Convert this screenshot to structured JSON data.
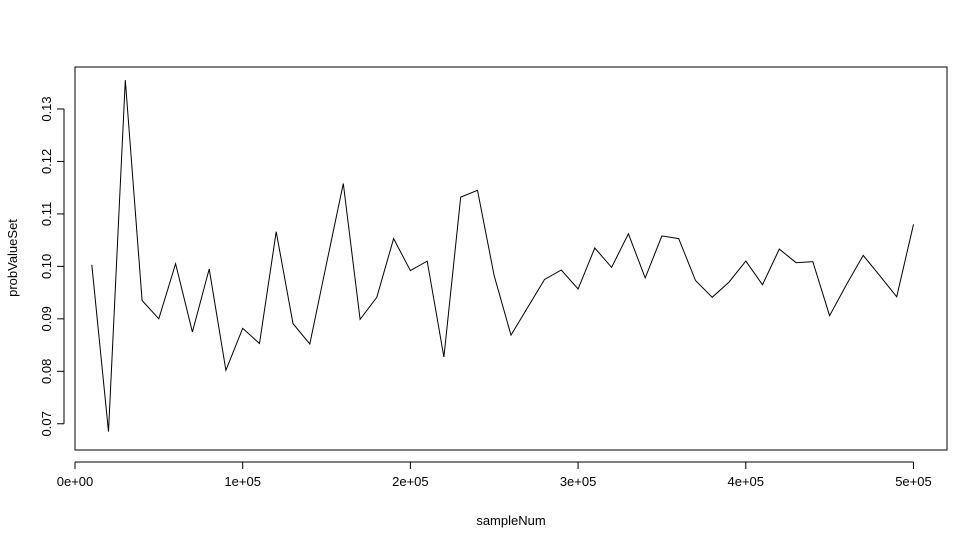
{
  "chart_data": {
    "type": "line",
    "title": "",
    "xlabel": "sampleNum",
    "ylabel": "probValueSet",
    "xlim": [
      0,
      520000
    ],
    "ylim": [
      0.065,
      0.138
    ],
    "x_ticks": [
      0,
      100000,
      200000,
      300000,
      400000,
      500000
    ],
    "x_tick_labels": [
      "0e+00",
      "1e+05",
      "2e+05",
      "3e+05",
      "4e+05",
      "5e+05"
    ],
    "y_ticks": [
      0.07,
      0.08,
      0.09,
      0.1,
      0.11,
      0.12,
      0.13
    ],
    "y_tick_labels": [
      "0.07",
      "0.08",
      "0.09",
      "0.10",
      "0.11",
      "0.12",
      "0.13"
    ],
    "grid": false,
    "line_color": "#000000",
    "series": [
      {
        "x": [
          10000,
          20000,
          30000,
          40000,
          50000,
          60000,
          70000,
          80000,
          90000,
          100000,
          110000,
          120000,
          130000,
          140000,
          150000,
          160000,
          170000,
          180000,
          190000,
          200000,
          210000,
          220000,
          230000,
          240000,
          250000,
          260000,
          270000,
          280000,
          290000,
          300000,
          310000,
          320000,
          330000,
          340000,
          350000,
          360000,
          370000,
          380000,
          390000,
          400000,
          410000,
          420000,
          430000,
          440000,
          450000,
          460000,
          470000,
          480000,
          490000,
          500000
        ],
        "values": [
          0.1003,
          0.0685,
          0.1355,
          0.0935,
          0.09,
          0.1005,
          0.0875,
          0.0995,
          0.0802,
          0.0882,
          0.0853,
          0.1066,
          0.0891,
          0.0852,
          0.1005,
          0.1158,
          0.0899,
          0.0941,
          0.1053,
          0.0992,
          0.101,
          0.0827,
          0.1132,
          0.1145,
          0.0982,
          0.0869,
          0.0922,
          0.0975,
          0.0993,
          0.0957,
          0.1035,
          0.0998,
          0.1062,
          0.0978,
          0.1058,
          0.1053,
          0.0973,
          0.0941,
          0.097,
          0.101,
          0.0965,
          0.1033,
          0.1007,
          0.1009,
          0.0906,
          0.0965,
          0.1021,
          0.0982,
          0.0942,
          0.108
        ]
      }
    ]
  }
}
